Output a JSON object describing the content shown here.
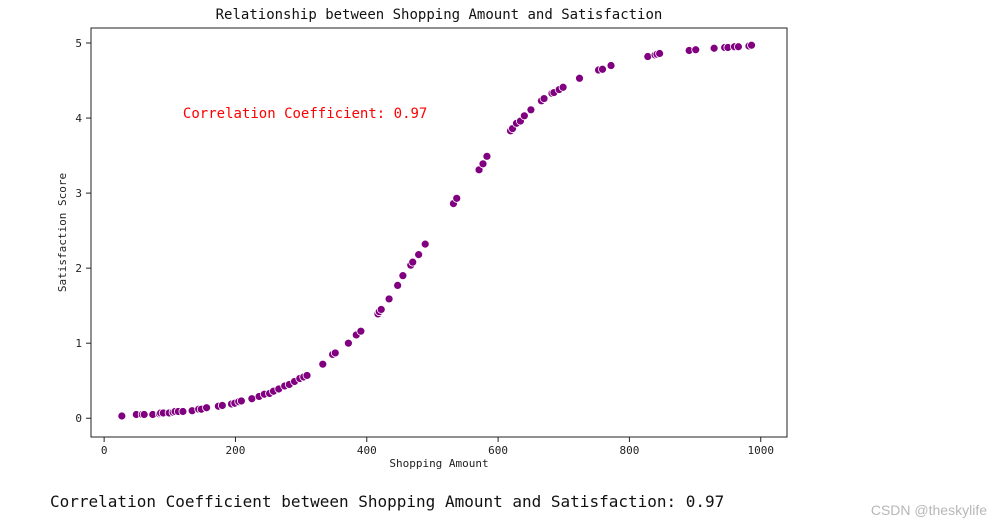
{
  "chart_data": {
    "type": "scatter",
    "title": "Relationship between Shopping Amount and Satisfaction",
    "xlabel": "Shopping Amount",
    "ylabel": "Satisfaction Score",
    "xlim": [
      -20,
      1040
    ],
    "ylim": [
      -0.25,
      5.2
    ],
    "xticks": [
      0,
      200,
      400,
      600,
      800,
      1000
    ],
    "yticks": [
      0,
      1,
      2,
      3,
      4,
      5
    ],
    "grid": false,
    "marker_color": "#800080",
    "marker_edge_color": "#ffffff",
    "annotation": {
      "text": "Correlation Coefficient: 0.97",
      "color": "#ff0000",
      "x": 120,
      "y": 4.0
    },
    "points": [
      [
        27,
        0.03
      ],
      [
        49,
        0.05
      ],
      [
        58,
        0.05
      ],
      [
        61,
        0.05
      ],
      [
        74,
        0.05
      ],
      [
        84,
        0.06
      ],
      [
        86,
        0.07
      ],
      [
        90,
        0.07
      ],
      [
        99,
        0.07
      ],
      [
        105,
        0.08
      ],
      [
        108,
        0.09
      ],
      [
        113,
        0.09
      ],
      [
        120,
        0.09
      ],
      [
        134,
        0.1
      ],
      [
        144,
        0.12
      ],
      [
        148,
        0.12
      ],
      [
        156,
        0.14
      ],
      [
        174,
        0.16
      ],
      [
        180,
        0.17
      ],
      [
        194,
        0.19
      ],
      [
        199,
        0.2
      ],
      [
        205,
        0.22
      ],
      [
        209,
        0.23
      ],
      [
        225,
        0.26
      ],
      [
        236,
        0.29
      ],
      [
        244,
        0.32
      ],
      [
        252,
        0.33
      ],
      [
        258,
        0.36
      ],
      [
        266,
        0.39
      ],
      [
        275,
        0.43
      ],
      [
        282,
        0.45
      ],
      [
        290,
        0.49
      ],
      [
        298,
        0.53
      ],
      [
        304,
        0.55
      ],
      [
        309,
        0.57
      ],
      [
        333,
        0.72
      ],
      [
        348,
        0.85
      ],
      [
        352,
        0.87
      ],
      [
        372,
        1.0
      ],
      [
        384,
        1.11
      ],
      [
        391,
        1.16
      ],
      [
        417,
        1.39
      ],
      [
        419,
        1.42
      ],
      [
        422,
        1.45
      ],
      [
        434,
        1.59
      ],
      [
        447,
        1.77
      ],
      [
        455,
        1.9
      ],
      [
        467,
        2.04
      ],
      [
        470,
        2.08
      ],
      [
        479,
        2.18
      ],
      [
        489,
        2.32
      ],
      [
        532,
        2.86
      ],
      [
        537,
        2.93
      ],
      [
        571,
        3.31
      ],
      [
        577,
        3.39
      ],
      [
        583,
        3.49
      ],
      [
        619,
        3.83
      ],
      [
        622,
        3.86
      ],
      [
        628,
        3.93
      ],
      [
        634,
        3.96
      ],
      [
        640,
        4.03
      ],
      [
        650,
        4.11
      ],
      [
        666,
        4.23
      ],
      [
        670,
        4.26
      ],
      [
        682,
        4.33
      ],
      [
        685,
        4.34
      ],
      [
        693,
        4.38
      ],
      [
        699,
        4.41
      ],
      [
        724,
        4.53
      ],
      [
        753,
        4.64
      ],
      [
        759,
        4.65
      ],
      [
        772,
        4.7
      ],
      [
        828,
        4.82
      ],
      [
        839,
        4.84
      ],
      [
        842,
        4.85
      ],
      [
        846,
        4.86
      ],
      [
        891,
        4.9
      ],
      [
        901,
        4.91
      ],
      [
        929,
        4.93
      ],
      [
        945,
        4.94
      ],
      [
        950,
        4.94
      ],
      [
        960,
        4.95
      ],
      [
        966,
        4.95
      ],
      [
        982,
        4.96
      ],
      [
        986,
        4.97
      ]
    ]
  },
  "caption": {
    "text": "Correlation Coefficient between Shopping Amount and Satisfaction: 0.97"
  },
  "watermark": {
    "text": "CSDN @theskylife"
  }
}
